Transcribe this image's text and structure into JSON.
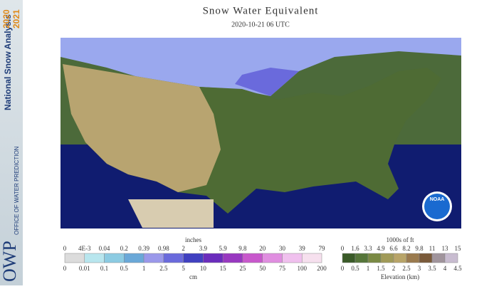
{
  "banner": {
    "title": "National Snow Analysis",
    "years": [
      "2020",
      "2021"
    ],
    "office": "OFFICE OF WATER PREDICTION",
    "logo": "OWP"
  },
  "header": {
    "title": "Snow Water Equivalent",
    "subtitle": "2020-10-21 06 UTC"
  },
  "logo": "NOAA",
  "swe_legend": {
    "top_unit": "inches",
    "top_labels": [
      "0",
      "4E-3",
      "0.04",
      "0.2",
      "0.39",
      "0.98",
      "2",
      "3.9",
      "5.9",
      "9.8",
      "20",
      "30",
      "39",
      "79"
    ],
    "bottom_labels": [
      "0",
      "0.01",
      "0.1",
      "0.5",
      "1",
      "2.5",
      "5",
      "10",
      "15",
      "25",
      "50",
      "75",
      "100",
      "200"
    ],
    "bottom_unit": "cm",
    "colors": [
      "#dcdcdc",
      "#b8e6ee",
      "#8ccbe2",
      "#6aa8d8",
      "#9a98ea",
      "#6a6adc",
      "#4040c0",
      "#6a2cbc",
      "#9838c0",
      "#c858cc",
      "#e08ee0",
      "#f0c0ee",
      "#f6e0ee"
    ]
  },
  "elev_legend": {
    "top_unit": "1000s of ft",
    "top_labels": [
      "0",
      "1.6",
      "3.3",
      "4.9",
      "6.6",
      "8.2",
      "9.8",
      "11",
      "13",
      "15"
    ],
    "bottom_labels": [
      "0",
      "0.5",
      "1",
      "1.5",
      "2",
      "2.5",
      "3",
      "3.5",
      "4",
      "4.5"
    ],
    "bottom_unit": "Elevation (km)",
    "colors": [
      "#3a5a28",
      "#56763a",
      "#7a8a44",
      "#a09a58",
      "#b8a468",
      "#9a7a4e",
      "#7a5a3a",
      "#a0949c",
      "#c8bcd0"
    ]
  }
}
